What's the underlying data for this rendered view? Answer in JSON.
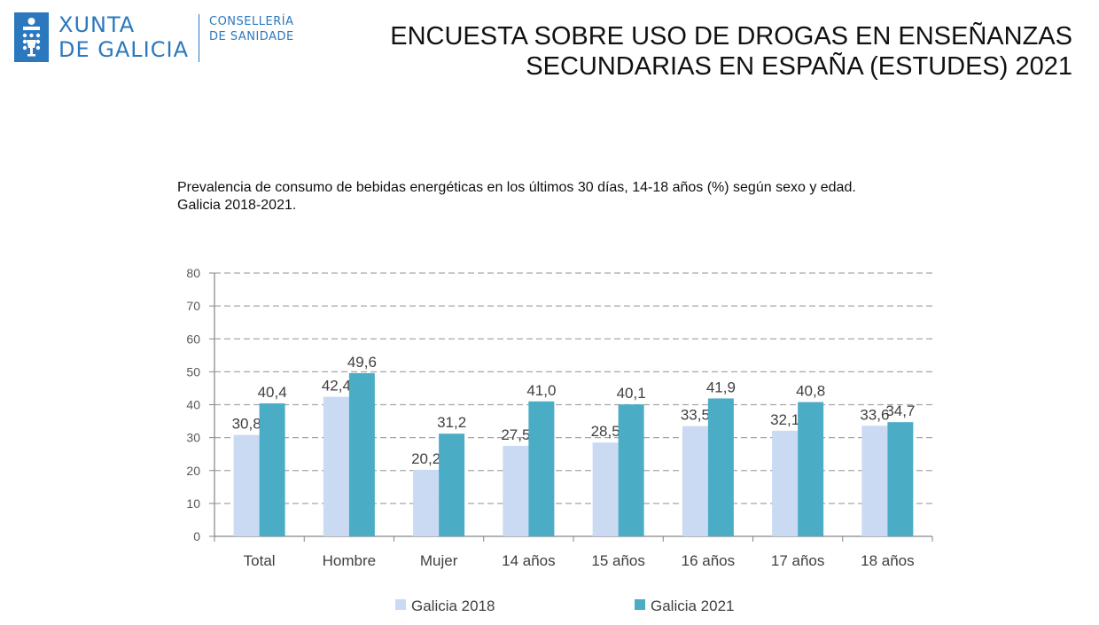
{
  "header": {
    "logo": {
      "name_line1": "XUNTA",
      "name_line2": "DE GALICIA",
      "dept_line1": "CONSELLERÍA",
      "dept_line2": "DE SANIDADE",
      "color": "#2b78be"
    },
    "title_line1": "ENCUESTA SOBRE USO DE DROGAS EN ENSEÑANZAS",
    "title_line2": "SECUNDARIAS EN ESPAÑA (ESTUDES) 2021"
  },
  "chart_data": {
    "type": "bar",
    "title_line1": "Prevalencia de consumo de bebidas energéticas en los últimos 30 días,  14-18 años (%) según sexo y edad.",
    "title_line2": "Galicia 2018-2021.",
    "categories": [
      "Total",
      "Hombre",
      "Mujer",
      "14 años",
      "15 años",
      "16 años",
      "17 años",
      "18 años"
    ],
    "series": [
      {
        "name": "Galicia 2018",
        "color": "#c9daf2",
        "values": [
          30.8,
          42.4,
          20.2,
          27.5,
          28.5,
          33.5,
          32.1,
          33.6
        ],
        "labels": [
          "30,8",
          "42,4",
          "20,2",
          "27,5",
          "28,5",
          "33,5",
          "32,1",
          "33,6"
        ]
      },
      {
        "name": "Galicia 2021",
        "color": "#4bacc6",
        "values": [
          40.4,
          49.6,
          31.2,
          41.0,
          40.1,
          41.9,
          40.8,
          34.7
        ],
        "labels": [
          "40,4",
          "49,6",
          "31,2",
          "41,0",
          "40,1",
          "41,9",
          "40,8",
          "34,7"
        ]
      }
    ],
    "ylim": [
      0,
      80
    ],
    "yticks": [
      0,
      10,
      20,
      30,
      40,
      50,
      60,
      70,
      80
    ],
    "grid": "dashed horizontal",
    "legend_position": "bottom"
  }
}
